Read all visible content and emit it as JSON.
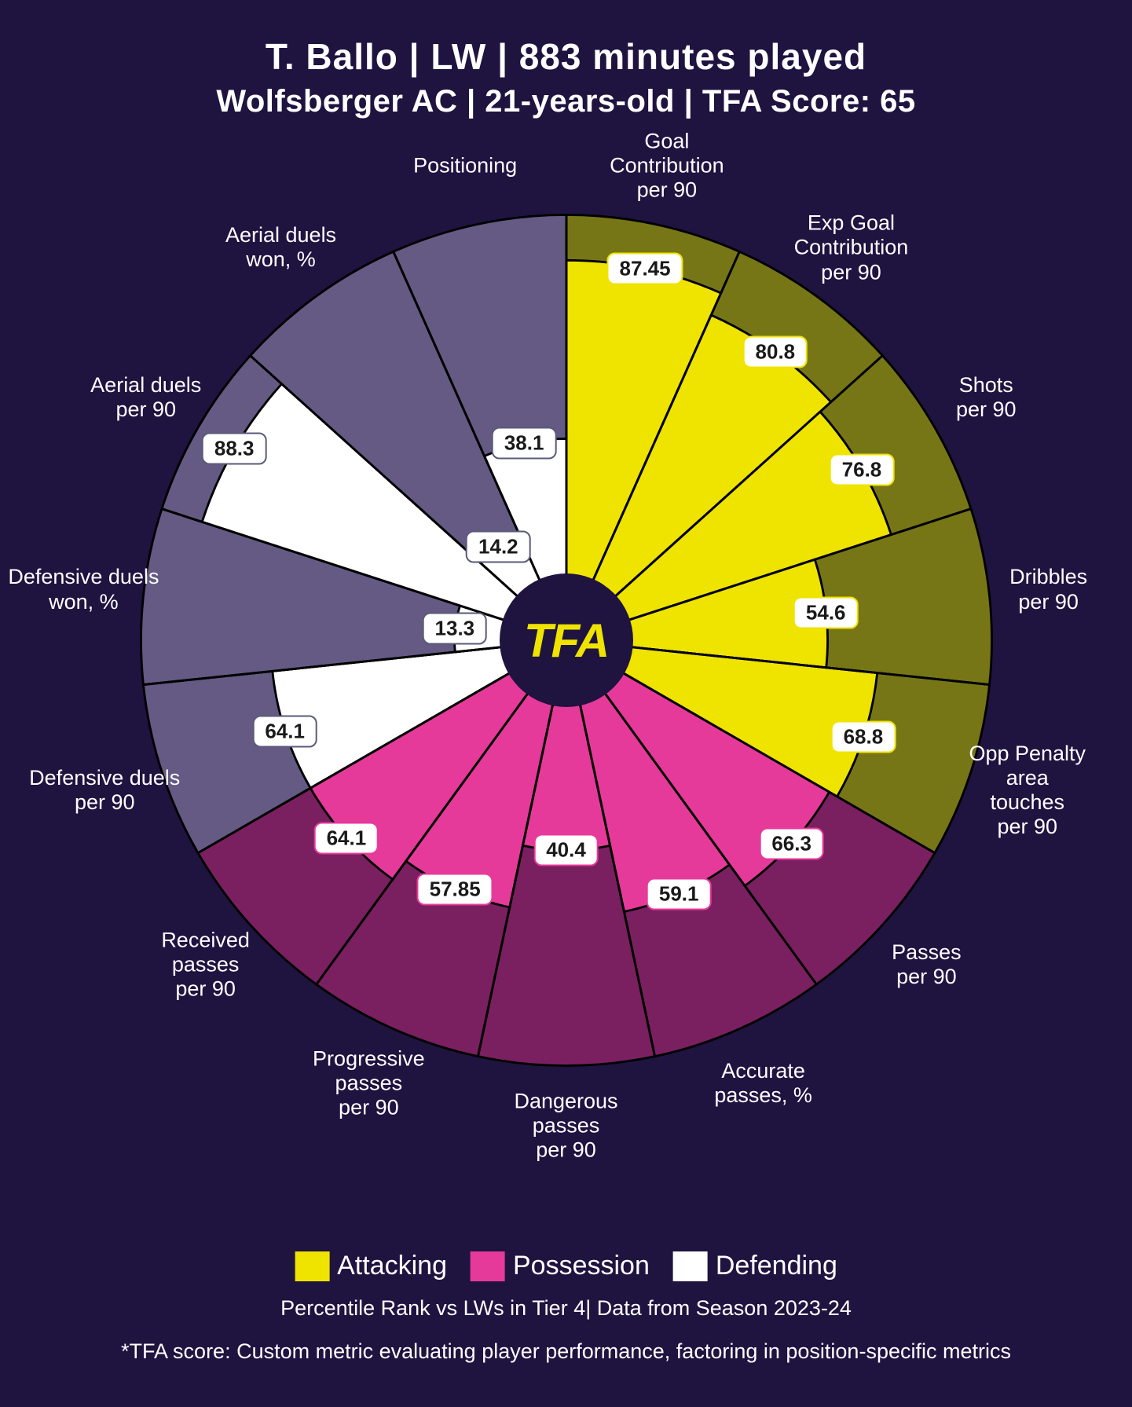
{
  "title_line1": "T. Ballo | LW | 883 minutes played",
  "title_line2": "Wolfsberger AC | 21-years-old | TFA Score: 65",
  "center_logo": "TFA",
  "footer_line1": "Percentile Rank vs LWs in Tier 4| Data from Season 2023-24",
  "footer_line2": "*TFA score: Custom metric evaluating player performance, factoring in position-specific metrics",
  "legend_items": [
    {
      "label": "Attacking",
      "color": "#efe300"
    },
    {
      "label": "Possession",
      "color": "#e63a9b"
    },
    {
      "label": "Defending",
      "color": "#ffffff"
    }
  ],
  "chart": {
    "type": "radial-bar",
    "background_color": "#1f1340",
    "inner_radius_pct": 15,
    "outer_radius_pct": 100,
    "ring_count": 3,
    "grid_color": "#9a8db3",
    "grid_dash": "6 6",
    "start_angle_deg": -90,
    "slices": [
      {
        "label": "Goal Contribution per 90",
        "value": 87.45,
        "category": "attacking",
        "fg": "#efe300",
        "bg": "#777617",
        "border": "#efe300"
      },
      {
        "label": "Exp Goal Contribution per 90",
        "value": 80.8,
        "category": "attacking",
        "fg": "#efe300",
        "bg": "#777617",
        "border": "#efe300"
      },
      {
        "label": "Shots per 90",
        "value": 76.8,
        "category": "attacking",
        "fg": "#efe300",
        "bg": "#777617",
        "border": "#efe300"
      },
      {
        "label": "Dribbles per 90",
        "value": 54.6,
        "category": "attacking",
        "fg": "#efe300",
        "bg": "#777617",
        "border": "#efe300"
      },
      {
        "label": "Opp Penalty area touches per 90",
        "value": 68.8,
        "category": "attacking",
        "fg": "#efe300",
        "bg": "#777617",
        "border": "#efe300"
      },
      {
        "label": "Passes per 90",
        "value": 66.3,
        "category": "possession",
        "fg": "#e63a9b",
        "bg": "#7a2060",
        "border": "#e63a9b"
      },
      {
        "label": "Accurate passes, %",
        "value": 59.1,
        "category": "possession",
        "fg": "#e63a9b",
        "bg": "#7a2060",
        "border": "#e63a9b"
      },
      {
        "label": "Dangerous passes per 90",
        "value": 40.4,
        "category": "possession",
        "fg": "#e63a9b",
        "bg": "#7a2060",
        "border": "#e63a9b"
      },
      {
        "label": "Progressive passes per 90",
        "value": 57.85,
        "category": "possession",
        "fg": "#e63a9b",
        "bg": "#7a2060",
        "border": "#e63a9b"
      },
      {
        "label": "Received passes per 90",
        "value": 64.1,
        "category": "possession",
        "fg": "#e63a9b",
        "bg": "#7a2060",
        "border": "#e63a9b"
      },
      {
        "label": "Defensive duels per 90",
        "value": 64.1,
        "category": "defending",
        "fg": "#ffffff",
        "bg": "#645a84",
        "border": "#5a5a7a"
      },
      {
        "label": "Defensive duels won, %",
        "value": 13.3,
        "category": "defending",
        "fg": "#ffffff",
        "bg": "#645a84",
        "border": "#5a5a7a"
      },
      {
        "label": "Aerial duels per 90",
        "value": 88.3,
        "category": "defending",
        "fg": "#ffffff",
        "bg": "#645a84",
        "border": "#5a5a7a"
      },
      {
        "label": "Aerial duels won, %",
        "value": 14.2,
        "category": "defending",
        "fg": "#ffffff",
        "bg": "#645a84",
        "border": "#5a5a7a"
      },
      {
        "label": "Positioning",
        "value": 38.1,
        "category": "defending",
        "fg": "#ffffff",
        "bg": "#645a84",
        "border": "#5a5a7a"
      }
    ]
  }
}
